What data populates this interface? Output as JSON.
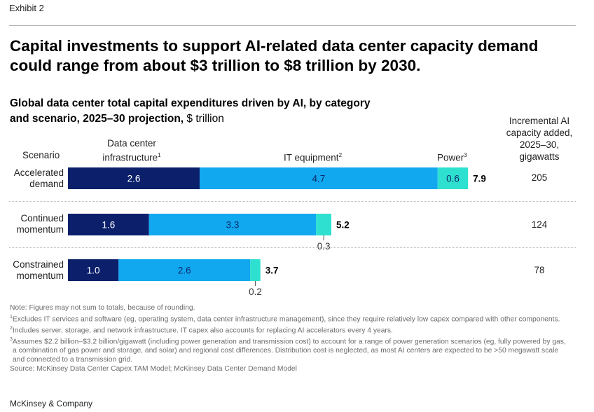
{
  "exhibit": "Exhibit 2",
  "headline": "Capital investments to support AI-related data center capacity demand could range from about $3 trillion to $8 trillion by 2030.",
  "subtitle": "Global data center total capital expenditures driven by AI, by category and scenario, 2025–30 projection,",
  "subtitle_unit": "$ trillion",
  "headers": {
    "scenario": "Scenario",
    "dci_line1": "Data center",
    "dci_line2": "infrastructure",
    "dci_sup": "1",
    "it": "IT equipment",
    "it_sup": "2",
    "power": "Power",
    "power_sup": "3",
    "capacity_line1": "Incremental AI",
    "capacity_line2": "capacity added,",
    "capacity_line3": "2025–30,",
    "capacity_line4": "gigawatts"
  },
  "colors": {
    "data_center_infrastructure": "#0b1f6b",
    "it_equipment": "#12a8f0",
    "power": "#2ee0cf"
  },
  "chart_data": {
    "type": "bar",
    "orientation": "horizontal",
    "stacked": true,
    "categories": [
      [
        "Accelerated",
        "demand"
      ],
      [
        "Continued",
        "momentum"
      ],
      [
        "Constrained",
        "momentum"
      ]
    ],
    "series": [
      {
        "name": "Data center infrastructure",
        "values": [
          2.6,
          1.6,
          1.0
        ],
        "labels": [
          "2.6",
          "1.6",
          "1.0"
        ]
      },
      {
        "name": "IT equipment",
        "values": [
          4.7,
          3.3,
          2.6
        ],
        "labels": [
          "4.7",
          "3.3",
          "2.6"
        ]
      },
      {
        "name": "Power",
        "values": [
          0.6,
          0.3,
          0.2
        ],
        "labels": [
          "0.6",
          "0.3",
          "0.2"
        ]
      }
    ],
    "totals": [
      "7.9",
      "5.2",
      "3.7"
    ],
    "capacity_gw": [
      "205",
      "124",
      "78"
    ],
    "xlim": [
      0,
      7.9
    ],
    "grid": false
  },
  "notes": {
    "note": "Note: Figures may not sum to totals, because of rounding.",
    "fn1": "Excludes IT services and software (eg, operating system, data center infrastructure management), since they require relatively low capex compared with other components.",
    "fn2": "Includes server, storage, and network infrastructure. IT capex also accounts for replacing AI accelerators every 4 years.",
    "fn3": "Assumes $2.2 billion–$3.2 billion/gigawatt (including power generation and transmission cost) to account for a range of power generation scenarios (eg, fully powered by gas, a combination of gas power and storage, and solar) and regional cost differences. Distribution cost is neglected, as most AI centers are expected to be >50 megawatt scale and connected to a transmission grid.",
    "source": "Source: McKinsey Data Center Capex TAM Model; McKinsey Data Center Demand Model"
  },
  "brand": "McKinsey & Company"
}
